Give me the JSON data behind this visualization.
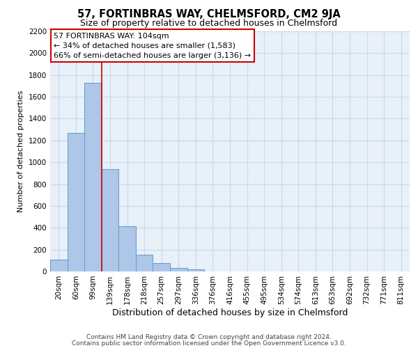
{
  "title": "57, FORTINBRAS WAY, CHELMSFORD, CM2 9JA",
  "subtitle": "Size of property relative to detached houses in Chelmsford",
  "xlabel": "Distribution of detached houses by size in Chelmsford",
  "ylabel": "Number of detached properties",
  "footer_line1": "Contains HM Land Registry data © Crown copyright and database right 2024.",
  "footer_line2": "Contains public sector information licensed under the Open Government Licence v3.0.",
  "bar_labels": [
    "20sqm",
    "60sqm",
    "99sqm",
    "139sqm",
    "178sqm",
    "218sqm",
    "257sqm",
    "297sqm",
    "336sqm",
    "376sqm",
    "416sqm",
    "455sqm",
    "495sqm",
    "534sqm",
    "574sqm",
    "613sqm",
    "653sqm",
    "692sqm",
    "732sqm",
    "771sqm",
    "811sqm"
  ],
  "bar_values": [
    110,
    1270,
    1730,
    940,
    415,
    150,
    75,
    35,
    20,
    0,
    0,
    0,
    0,
    0,
    0,
    0,
    0,
    0,
    0,
    0,
    0
  ],
  "bar_color": "#aec6e8",
  "bar_edge_color": "#5b9bd5",
  "grid_color": "#c8d8ea",
  "background_color": "#e8f0f8",
  "ylim": [
    0,
    2200
  ],
  "yticks": [
    0,
    200,
    400,
    600,
    800,
    1000,
    1200,
    1400,
    1600,
    1800,
    2000,
    2200
  ],
  "vline_x": 2.5,
  "vline_color": "#cc0000",
  "annotation_text": "57 FORTINBRAS WAY: 104sqm\n← 34% of detached houses are smaller (1,583)\n66% of semi-detached houses are larger (3,136) →",
  "annotation_box_color": "#ffffff",
  "annotation_box_edge": "#cc0000",
  "title_fontsize": 10.5,
  "subtitle_fontsize": 9,
  "xlabel_fontsize": 9,
  "ylabel_fontsize": 8,
  "tick_fontsize": 7.5,
  "annotation_fontsize": 8,
  "footer_fontsize": 6.5
}
